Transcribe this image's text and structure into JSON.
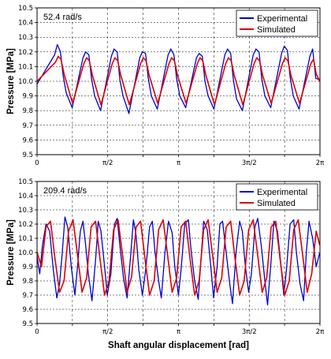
{
  "chart_data": [
    {
      "type": "line",
      "annotation": "52.4 rad/s",
      "ylabel": "Pressure [MPa]",
      "xlabel": "",
      "xlim": [
        0,
        6.2832
      ],
      "ylim": [
        9.5,
        10.5
      ],
      "yticks": [
        "9.5",
        "9.6",
        "9.7",
        "9.8",
        "9.9",
        "10.0",
        "10.1",
        "10.2",
        "10.3",
        "10.4",
        "10.5"
      ],
      "xticks": [
        "0",
        "π/2",
        "π",
        "3π/2",
        "2π"
      ],
      "grid": true,
      "legend_position": "top-right",
      "series": [
        {
          "name": "Experimental",
          "color": "#0000cc",
          "x": [
            0.0,
            0.39,
            0.45,
            0.52,
            0.58,
            0.65,
            0.78,
            1.02,
            1.08,
            1.15,
            1.21,
            1.28,
            1.41,
            1.65,
            1.71,
            1.78,
            1.84,
            1.91,
            2.04,
            2.28,
            2.34,
            2.41,
            2.47,
            2.54,
            2.67,
            2.91,
            2.97,
            3.04,
            3.1,
            3.17,
            3.3,
            3.54,
            3.6,
            3.67,
            3.73,
            3.8,
            3.93,
            4.17,
            4.23,
            4.3,
            4.36,
            4.43,
            4.56,
            4.8,
            4.86,
            4.93,
            4.99,
            5.06,
            5.19,
            5.43,
            5.49,
            5.56,
            5.62,
            5.69,
            5.82,
            6.06,
            6.12,
            6.19,
            6.28
          ],
          "y": [
            9.98,
            10.18,
            10.25,
            10.2,
            10.04,
            9.92,
            9.82,
            10.16,
            10.2,
            10.18,
            10.02,
            9.9,
            9.8,
            10.17,
            10.22,
            10.2,
            10.01,
            9.9,
            9.78,
            10.16,
            10.2,
            10.19,
            10.02,
            9.9,
            9.81,
            10.18,
            10.22,
            10.18,
            10.02,
            9.9,
            9.82,
            10.16,
            10.19,
            10.17,
            10.0,
            9.9,
            9.81,
            10.18,
            10.22,
            10.19,
            10.01,
            9.88,
            9.8,
            10.18,
            10.22,
            10.2,
            10.02,
            9.9,
            9.82,
            10.19,
            10.24,
            10.21,
            10.03,
            9.9,
            9.81,
            10.17,
            10.22,
            10.02,
            10.01
          ]
        },
        {
          "name": "Simulated",
          "color": "#dd0000",
          "x": [
            0.0,
            0.41,
            0.47,
            0.53,
            0.6,
            0.79,
            1.04,
            1.1,
            1.16,
            1.23,
            1.42,
            1.67,
            1.73,
            1.79,
            1.86,
            2.05,
            2.3,
            2.36,
            2.42,
            2.49,
            2.68,
            2.93,
            2.99,
            3.05,
            3.12,
            3.31,
            3.56,
            3.62,
            3.68,
            3.75,
            3.94,
            4.19,
            4.25,
            4.31,
            4.38,
            4.57,
            4.82,
            4.88,
            4.94,
            5.01,
            5.2,
            5.45,
            5.51,
            5.57,
            5.64,
            5.83,
            6.08,
            6.14,
            6.2,
            6.28
          ],
          "y": [
            10.0,
            10.13,
            10.17,
            10.15,
            10.05,
            9.85,
            10.12,
            10.16,
            10.14,
            10.04,
            9.84,
            10.12,
            10.16,
            10.14,
            10.04,
            9.84,
            10.12,
            10.16,
            10.14,
            10.04,
            9.85,
            10.12,
            10.16,
            10.14,
            10.04,
            9.85,
            10.12,
            10.16,
            10.14,
            10.04,
            9.84,
            10.12,
            10.16,
            10.14,
            10.04,
            9.84,
            10.12,
            10.16,
            10.14,
            10.04,
            9.85,
            10.12,
            10.16,
            10.14,
            10.04,
            9.85,
            10.12,
            10.15,
            10.05,
            10.0
          ]
        }
      ]
    },
    {
      "type": "line",
      "annotation": "209.4 rad/s",
      "ylabel": "Pressure [MPa]",
      "xlabel": "Shaft angular displacement [rad]",
      "xlim": [
        0,
        6.2832
      ],
      "ylim": [
        9.5,
        10.5
      ],
      "yticks": [
        "9.5",
        "9.6",
        "9.7",
        "9.8",
        "9.9",
        "10.0",
        "10.1",
        "10.2",
        "10.3",
        "10.4",
        "10.5"
      ],
      "xticks": [
        "0",
        "π/2",
        "π",
        "3π/2",
        "2π"
      ],
      "grid": true,
      "legend_position": "top-right",
      "series": [
        {
          "name": "Experimental",
          "color": "#0000cc",
          "x": [
            0.0,
            0.06,
            0.12,
            0.2,
            0.28,
            0.36,
            0.44,
            0.5,
            0.56,
            0.62,
            0.68,
            0.76,
            0.84,
            0.9,
            0.96,
            1.02,
            1.08,
            1.14,
            1.22,
            1.3,
            1.36,
            1.42,
            1.5,
            1.56,
            1.64,
            1.72,
            1.78,
            1.84,
            1.92,
            2.0,
            2.08,
            2.14,
            2.2,
            2.26,
            2.34,
            2.42,
            2.5,
            2.56,
            2.62,
            2.7,
            2.76,
            2.84,
            2.92,
            3.0,
            3.06,
            3.14,
            3.2,
            3.28,
            3.36,
            3.42,
            3.5,
            3.58,
            3.64,
            3.7,
            3.78,
            3.86,
            3.92,
            4.0,
            4.06,
            4.12,
            4.2,
            4.28,
            4.34,
            4.42,
            4.5,
            4.56,
            4.62,
            4.7,
            4.76,
            4.84,
            4.9,
            4.98,
            5.06,
            5.12,
            5.2,
            5.26,
            5.34,
            5.42,
            5.48,
            5.54,
            5.62,
            5.7,
            5.76,
            5.84,
            5.92,
            5.98,
            6.04,
            6.12,
            6.2,
            6.28
          ],
          "y": [
            9.97,
            9.85,
            10.05,
            10.2,
            10.15,
            9.88,
            9.68,
            9.78,
            10.0,
            10.25,
            10.18,
            9.9,
            9.7,
            9.9,
            10.15,
            10.22,
            10.05,
            9.85,
            9.66,
            9.95,
            10.22,
            10.15,
            9.9,
            9.7,
            9.85,
            10.2,
            10.24,
            10.05,
            9.82,
            9.68,
            9.98,
            10.23,
            10.12,
            9.88,
            9.7,
            9.9,
            10.18,
            10.22,
            10.0,
            9.8,
            9.68,
            10.0,
            10.22,
            10.14,
            9.9,
            9.7,
            9.88,
            10.2,
            10.23,
            10.02,
            9.8,
            9.67,
            9.95,
            10.22,
            10.16,
            9.9,
            9.68,
            9.9,
            10.2,
            10.22,
            10.0,
            9.78,
            9.64,
            10.0,
            10.22,
            10.15,
            9.92,
            9.72,
            9.85,
            10.18,
            10.24,
            10.05,
            9.8,
            9.63,
            9.95,
            10.22,
            10.15,
            9.9,
            9.7,
            9.88,
            10.2,
            10.23,
            10.0,
            9.78,
            9.66,
            10.0,
            10.22,
            10.1,
            9.9,
            10.0
          ]
        },
        {
          "name": "Simulated",
          "color": "#dd0000",
          "x": [
            0.0,
            0.1,
            0.2,
            0.3,
            0.4,
            0.5,
            0.6,
            0.7,
            0.8,
            0.9,
            1.0,
            1.1,
            1.2,
            1.3,
            1.4,
            1.5,
            1.6,
            1.7,
            1.8,
            1.9,
            2.0,
            2.1,
            2.2,
            2.3,
            2.4,
            2.5,
            2.6,
            2.7,
            2.8,
            2.9,
            3.0,
            3.1,
            3.2,
            3.3,
            3.4,
            3.5,
            3.6,
            3.7,
            3.8,
            3.9,
            4.0,
            4.1,
            4.2,
            4.3,
            4.4,
            4.5,
            4.6,
            4.7,
            4.8,
            4.9,
            5.0,
            5.1,
            5.2,
            5.3,
            5.4,
            5.5,
            5.6,
            5.7,
            5.8,
            5.9,
            6.0,
            6.1,
            6.2,
            6.28
          ],
          "y": [
            10.0,
            9.9,
            10.18,
            10.22,
            9.95,
            9.72,
            9.8,
            10.15,
            10.23,
            9.98,
            9.72,
            9.82,
            10.18,
            10.22,
            9.95,
            9.7,
            9.8,
            10.16,
            10.23,
            9.98,
            9.72,
            9.83,
            10.18,
            10.22,
            9.95,
            9.7,
            9.8,
            10.16,
            10.23,
            9.98,
            9.72,
            9.82,
            10.18,
            10.22,
            9.95,
            9.7,
            9.8,
            10.16,
            10.23,
            9.98,
            9.72,
            9.82,
            10.18,
            10.22,
            9.95,
            9.7,
            9.8,
            10.16,
            10.23,
            9.98,
            9.72,
            9.82,
            10.18,
            10.22,
            9.95,
            9.7,
            9.8,
            10.16,
            10.23,
            9.98,
            9.72,
            9.85,
            10.15,
            10.05
          ]
        }
      ]
    }
  ]
}
